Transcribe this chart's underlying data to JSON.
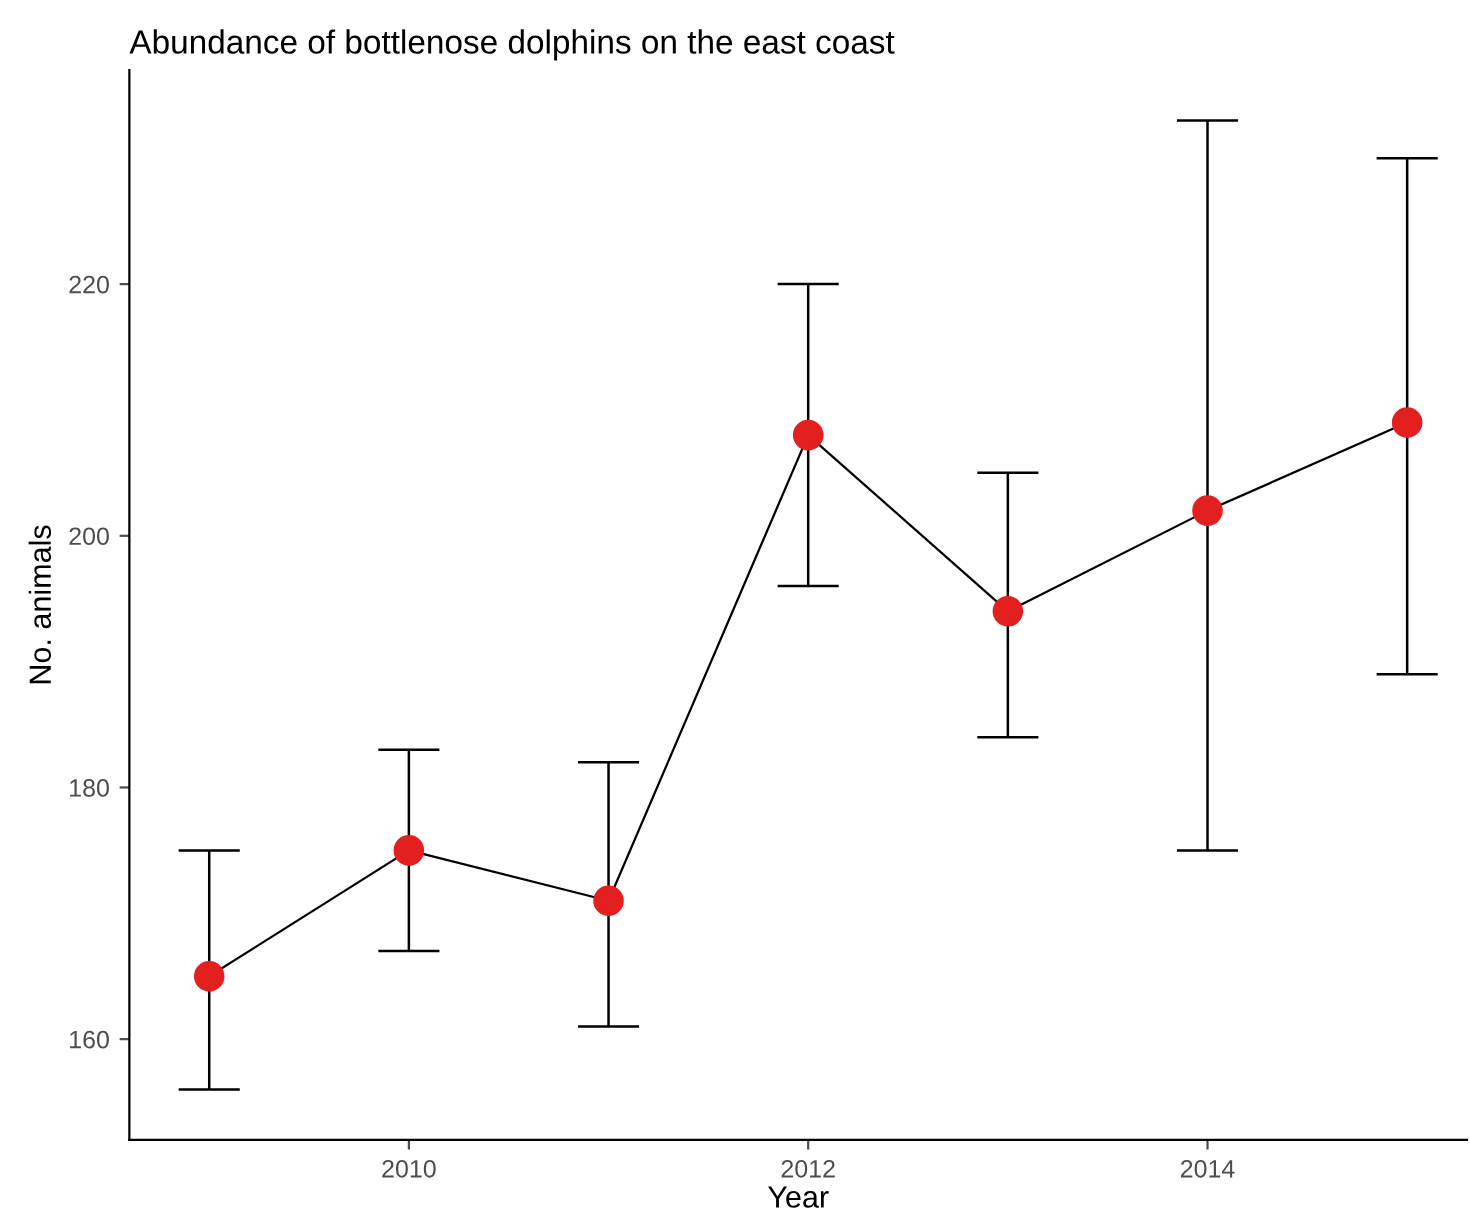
{
  "chart_data": {
    "type": "line",
    "title": "Abundance of bottlenose dolphins on the east coast",
    "xlabel": "Year",
    "ylabel": "No. animals",
    "x": [
      2009,
      2010,
      2011,
      2012,
      2013,
      2014,
      2015
    ],
    "series": [
      {
        "color": "#e3201f",
        "values": [
          165,
          175,
          171,
          208,
          194,
          202,
          209
        ],
        "errors": [
          [
            156,
            175
          ],
          [
            167,
            183
          ],
          [
            161,
            182
          ],
          [
            196,
            220
          ],
          [
            184,
            205
          ],
          [
            175,
            233
          ],
          [
            189,
            230
          ]
        ]
      }
    ],
    "xlim": [
      2008.6,
      2015.3
    ],
    "ylim": [
      152,
      237
    ],
    "xticks": [
      2010,
      2012,
      2014
    ],
    "yticks": [
      160,
      180,
      200,
      220
    ],
    "grid": false,
    "legend": false,
    "marker": "circle",
    "line_style": "solid"
  }
}
